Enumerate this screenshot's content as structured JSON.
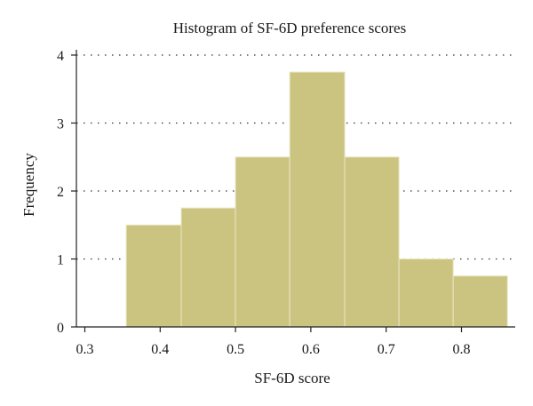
{
  "chart_data": {
    "type": "bar",
    "subtype": "histogram",
    "title": "Histogram of SF-6D preference scores",
    "xlabel": "SF-6D score",
    "ylabel": "Frequency",
    "xlim": [
      0.3,
      0.86
    ],
    "ylim": [
      0,
      4
    ],
    "x_ticks": [
      0.3,
      0.4,
      0.5,
      0.6,
      0.7,
      0.8
    ],
    "x_tick_labels": [
      "0.3",
      "0.4",
      "0.5",
      "0.6",
      "0.7",
      "0.8"
    ],
    "y_ticks": [
      0,
      1,
      2,
      3,
      4
    ],
    "y_tick_labels": [
      "0",
      "1",
      "2",
      "3",
      "4"
    ],
    "bins": [
      {
        "start": 0.355,
        "end": 0.428,
        "value": 1.5
      },
      {
        "start": 0.428,
        "end": 0.5,
        "value": 1.75
      },
      {
        "start": 0.5,
        "end": 0.572,
        "value": 2.5
      },
      {
        "start": 0.572,
        "end": 0.645,
        "value": 3.75
      },
      {
        "start": 0.645,
        "end": 0.717,
        "value": 2.5
      },
      {
        "start": 0.717,
        "end": 0.789,
        "value": 1.0
      },
      {
        "start": 0.789,
        "end": 0.861,
        "value": 0.75
      }
    ],
    "grid": "horizontal-dotted",
    "bar_color": "#cbc480",
    "bar_edge_color": "#e9e5c4",
    "axis_color": "#222222"
  }
}
